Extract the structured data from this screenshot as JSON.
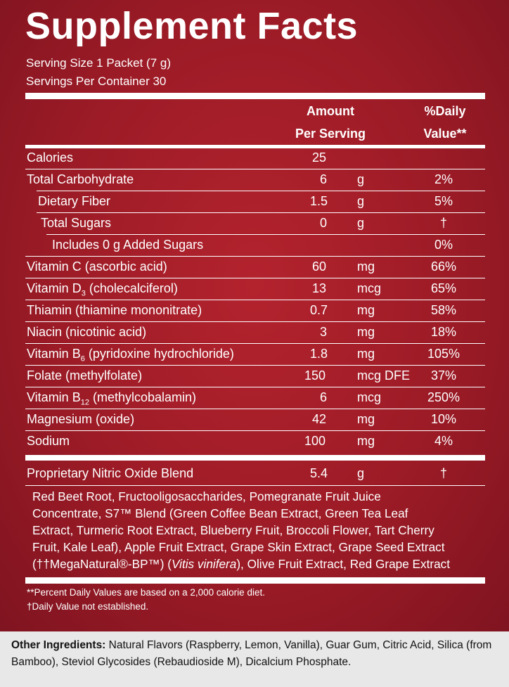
{
  "title": "Supplement Facts",
  "serving_size": "Serving Size 1 Packet (7 g)",
  "servings_per_container": "Servings Per Container 30",
  "header": {
    "amount_line1": "Amount",
    "amount_line2": "Per Serving",
    "dv_line1": "%Daily",
    "dv_line2": "Value**"
  },
  "rows": [
    {
      "name": "Calories",
      "amount": "25",
      "unit": "",
      "dv": ""
    },
    {
      "name": "Total Carbohydrate",
      "amount": "6",
      "unit": "g",
      "dv": "2%"
    },
    {
      "name": "Dietary Fiber",
      "amount": "1.5",
      "unit": "g",
      "dv": "5%"
    },
    {
      "name": "Total Sugars",
      "amount": "0",
      "unit": "g",
      "dv": "†"
    },
    {
      "name": "Includes 0 g Added Sugars",
      "amount": "",
      "unit": "",
      "dv": "0%"
    },
    {
      "name": "Vitamin C (ascorbic acid)",
      "amount": "60",
      "unit": "mg",
      "dv": "66%"
    },
    {
      "name_pre": "Vitamin D",
      "name_sub": "3",
      "name_post": " (cholecalciferol)",
      "amount": "13",
      "unit": "mcg",
      "dv": "65%"
    },
    {
      "name": "Thiamin (thiamine mononitrate)",
      "amount": "0.7",
      "unit": "mg",
      "dv": "58%"
    },
    {
      "name": "Niacin (nicotinic acid)",
      "amount": "3",
      "unit": "mg",
      "dv": "18%"
    },
    {
      "name_pre": "Vitamin B",
      "name_sub": "6",
      "name_post": " (pyridoxine hydrochloride)",
      "amount": "1.8",
      "unit": "mg",
      "dv": "105%"
    },
    {
      "name": "Folate (methylfolate)",
      "amount": "150",
      "unit": "mcg DFE",
      "dv": "37%"
    },
    {
      "name_pre": "Vitamin B",
      "name_sub": "12",
      "name_post": " (methylcobalamin)",
      "amount": "6",
      "unit": "mcg",
      "dv": "250%"
    },
    {
      "name": "Magnesium (oxide)",
      "amount": "42",
      "unit": "mg",
      "dv": "10%"
    },
    {
      "name": "Sodium",
      "amount": "100",
      "unit": "mg",
      "dv": "4%"
    },
    {
      "name": "Proprietary Nitric Oxide Blend",
      "amount": "5.4",
      "unit": "g",
      "dv": "†"
    }
  ],
  "blend": {
    "line1": "Red Beet Root, Fructooligosaccharides, Pomegranate Fruit Juice",
    "line2": "Concentrate, S7™ Blend (Green Coffee Bean Extract, Green Tea Leaf",
    "line3": "Extract, Turmeric Root Extract, Blueberry Fruit, Broccoli Flower, Tart Cherry",
    "line4": "Fruit, Kale Leaf), Apple Fruit Extract, Grape Skin Extract, Grape Seed Extract",
    "line5_a": "(††MegaNatural®-BP™) (",
    "line5_italic": "Vitis vinifera",
    "line5_b": "), Olive Fruit Extract, Red Grape Extract"
  },
  "footnotes": {
    "percent_dv": "**Percent Daily Values are based on a 2,000 calorie diet.",
    "not_established": "†Daily Value not established."
  },
  "other_ingredients": {
    "label": "Other Ingredients:",
    "text": " Natural Flavors (Raspberry, Lemon, Vanilla), Guar Gum, Citric Acid, Silica (from Bamboo), Steviol Glycosides (Rebaudioside M), Dicalcium Phosphate."
  },
  "colors": {
    "label_red": "#a11e29",
    "text": "#ffffff",
    "page_background": "#e8e8e8"
  }
}
